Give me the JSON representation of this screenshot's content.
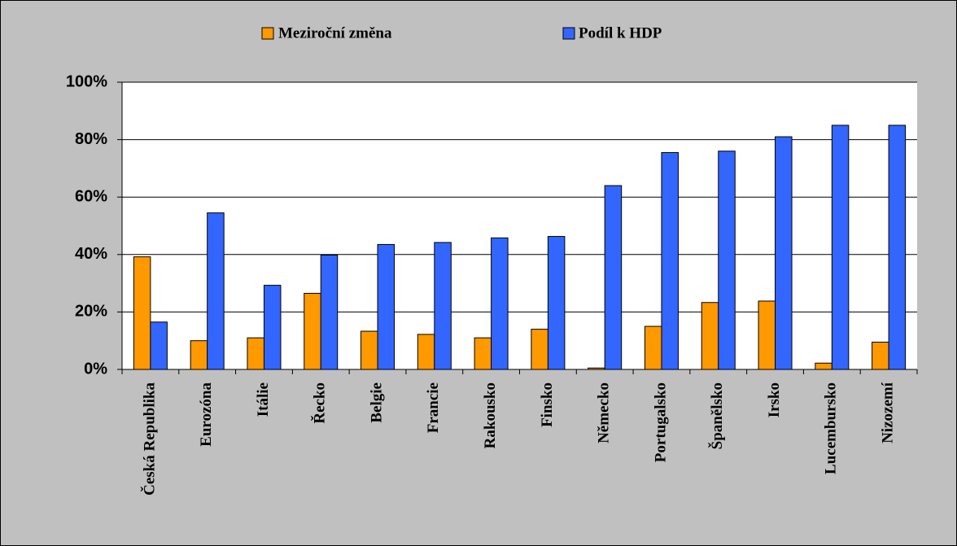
{
  "chart_data": {
    "type": "bar",
    "categories": [
      "Česká Republika",
      "Eurozóna",
      "Itálie",
      "Řecko",
      "Belgie",
      "Francie",
      "Rakousko",
      "Finsko",
      "Německo",
      "Portugalsko",
      "Španělsko",
      "Irsko",
      "Lucembursko",
      "Nizozemí"
    ],
    "series": [
      {
        "name": "Meziroční změna",
        "color": "#ff9900",
        "values": [
          39.2,
          10,
          11,
          26.5,
          13.3,
          12.2,
          11,
          14,
          0.5,
          15,
          23.3,
          23.8,
          2.2,
          9.5
        ]
      },
      {
        "name": "Podíl k HDP",
        "color": "#3366ff",
        "values": [
          16.5,
          54.5,
          29.3,
          39.8,
          43.5,
          44.2,
          45.8,
          46.3,
          64,
          75.5,
          76,
          81,
          85,
          85
        ]
      }
    ],
    "ylim": [
      0,
      100
    ],
    "yticks": [
      {
        "value": 0,
        "label": "0%"
      },
      {
        "value": 20,
        "label": "20%"
      },
      {
        "value": 40,
        "label": "40%"
      },
      {
        "value": 60,
        "label": "60%"
      },
      {
        "value": 80,
        "label": "80%"
      },
      {
        "value": 100,
        "label": "100%"
      }
    ],
    "grid": true,
    "legend": "top"
  }
}
